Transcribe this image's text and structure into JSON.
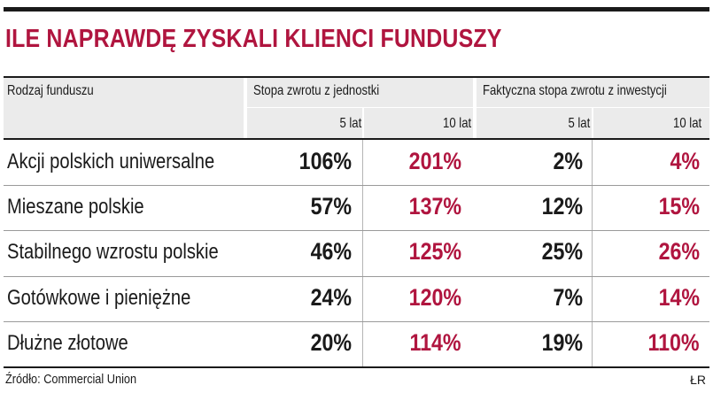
{
  "chart_data": {
    "type": "table",
    "title": "ILE NAPRAWDĘ ZYSKALI KLIENCI FUNDUSZY",
    "row_header": "Rodzaj funduszu",
    "column_groups": [
      {
        "label": "Stopa zwrotu z jednostki",
        "subcolumns": [
          "5 lat",
          "10 lat"
        ]
      },
      {
        "label": "Faktyczna stopa zwrotu z inwestycji",
        "subcolumns": [
          "5 lat",
          "10 lat"
        ]
      }
    ],
    "rows": [
      {
        "category": "Akcji polskich uniwersalne",
        "cells": [
          "106%",
          "201%",
          "2%",
          "4%"
        ]
      },
      {
        "category": "Mieszane polskie",
        "cells": [
          "57%",
          "137%",
          "12%",
          "15%"
        ]
      },
      {
        "category": "Stabilnego wzrostu polskie",
        "cells": [
          "46%",
          "125%",
          "25%",
          "26%"
        ]
      },
      {
        "category": "Gotówkowe i pieniężne",
        "cells": [
          "24%",
          "120%",
          "7%",
          "14%"
        ]
      },
      {
        "category": "Dłużne złotowe",
        "cells": [
          "20%",
          "114%",
          "19%",
          "110%"
        ]
      }
    ],
    "source": "Źródło: Commercial Union",
    "credit": "ŁR"
  },
  "colors": {
    "accent": "#b0153f",
    "text": "#1a1a1a",
    "header_bg": "#ebebeb"
  }
}
